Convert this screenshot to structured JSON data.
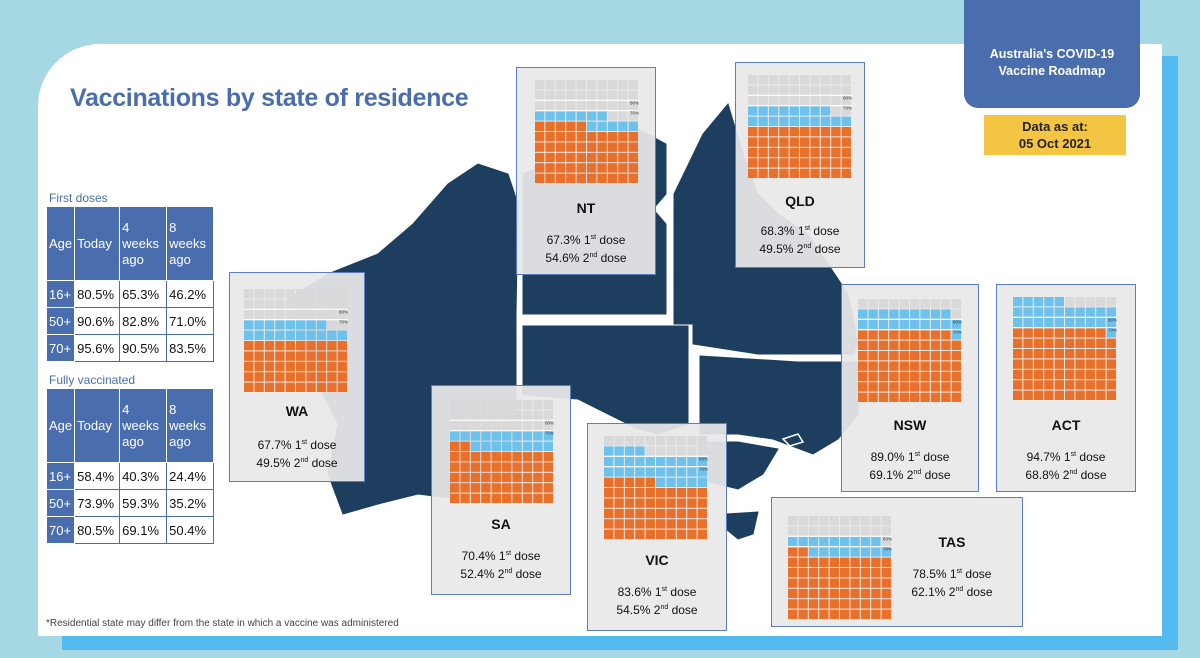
{
  "header": {
    "title": "Vaccinations by state of residence",
    "roadmap_line1": "Australia's COVID-19",
    "roadmap_line2": "Vaccine Roadmap",
    "data_as_at_label": "Data as at:",
    "data_as_at_date": "05 Oct 2021",
    "footnote": "*Residential state may differ from the state in which a vaccine was administered"
  },
  "colors": {
    "brand_blue": "#4a6dad",
    "map_fill": "#1d3e5f",
    "second_dose": "#e8702a",
    "first_dose": "#6ec1ea",
    "unvaccinated": "#d9d9d9",
    "highlight": "#f4c443",
    "accent": "#53baf0"
  },
  "tables": {
    "first_doses": {
      "label": "First doses",
      "headers": [
        "Age",
        "Today",
        "4 weeks ago",
        "8 weeks ago"
      ],
      "rows": [
        [
          "16+",
          "80.5%",
          "65.3%",
          "46.2%"
        ],
        [
          "50+",
          "90.6%",
          "82.8%",
          "71.0%"
        ],
        [
          "70+",
          "95.6%",
          "90.5%",
          "83.5%"
        ]
      ]
    },
    "fully_vaccinated": {
      "label": "Fully vaccinated",
      "headers": [
        "Age",
        "Today",
        "4 weeks ago",
        "8 weeks ago"
      ],
      "rows": [
        [
          "16+",
          "58.4%",
          "40.3%",
          "24.4%"
        ],
        [
          "50+",
          "73.9%",
          "59.3%",
          "35.2%"
        ],
        [
          "70+",
          "80.5%",
          "69.1%",
          "50.4%"
        ]
      ]
    }
  },
  "dose_labels": {
    "first_suffix": "st",
    "first_word": "dose",
    "second_suffix": "nd",
    "second_word": "dose"
  },
  "chart_data": {
    "type": "waffle",
    "grid": [
      10,
      10
    ],
    "reference_lines": [
      "80%",
      "70%"
    ],
    "states": [
      {
        "code": "WA",
        "first_dose_text": "67.7%",
        "second_dose_text": "49.5%",
        "first_dose": 67.7,
        "second_dose": 49.5
      },
      {
        "code": "NT",
        "first_dose_text": "67.3%",
        "second_dose_text": "54.6%",
        "first_dose": 67.3,
        "second_dose": 54.6
      },
      {
        "code": "QLD",
        "first_dose_text": "68.3%",
        "second_dose_text": "49.5%",
        "first_dose": 68.3,
        "second_dose": 49.5
      },
      {
        "code": "SA",
        "first_dose_text": "70.4%",
        "second_dose_text": "52.4%",
        "first_dose": 70.4,
        "second_dose": 52.4
      },
      {
        "code": "VIC",
        "first_dose_text": "83.6%",
        "second_dose_text": "54.5%",
        "first_dose": 83.6,
        "second_dose": 54.5
      },
      {
        "code": "NSW",
        "first_dose_text": "89.0%",
        "second_dose_text": "69.1%",
        "first_dose": 89.0,
        "second_dose": 69.1
      },
      {
        "code": "ACT",
        "first_dose_text": "94.7%",
        "second_dose_text": "68.8%",
        "first_dose": 94.7,
        "second_dose": 68.8
      },
      {
        "code": "TAS",
        "first_dose_text": "78.5%",
        "second_dose_text": "62.1%",
        "first_dose": 78.5,
        "second_dose": 62.1
      }
    ]
  }
}
